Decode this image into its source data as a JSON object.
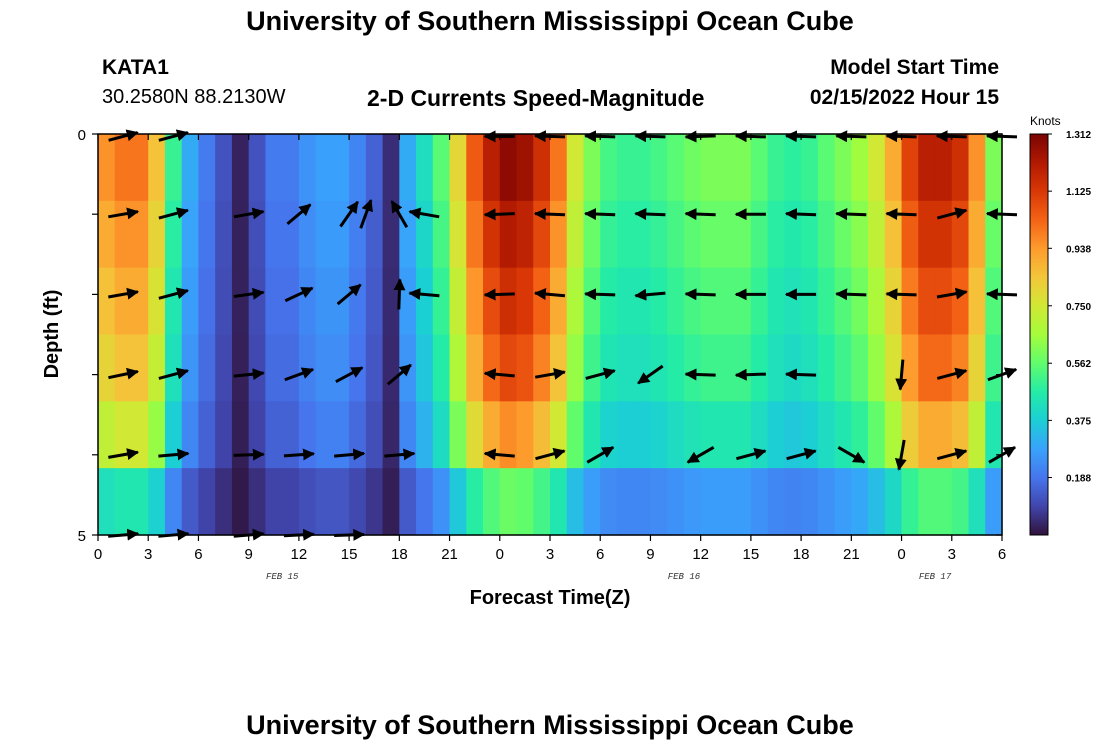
{
  "header": {
    "title": "University of Southern Mississippi Ocean Cube",
    "station": "KATA1",
    "coords": "30.2580N  88.2130W",
    "subtitle": "2-D Currents Speed-Magnitude",
    "model_start_label": "Model Start Time",
    "model_start_value": "02/15/2022 Hour 15"
  },
  "footer": {
    "title": "University of Southern Mississippi Ocean Cube"
  },
  "chart_data": {
    "type": "heatmap",
    "title": "2-D Currents Speed-Magnitude",
    "xlabel": "Forecast Time(Z)",
    "ylabel": "Depth (ft)",
    "x_tick_labels": [
      "0",
      "3",
      "6",
      "9",
      "12",
      "15",
      "18",
      "21",
      "0",
      "3",
      "6",
      "9",
      "12",
      "15",
      "18",
      "21",
      "0",
      "3",
      "6"
    ],
    "y_tick_labels": [
      "0",
      "5"
    ],
    "date_labels": [
      {
        "text": "FEB 15",
        "at_hour": 11
      },
      {
        "text": "FEB 16",
        "at_hour": 35
      },
      {
        "text": "FEB 17",
        "at_hour": 50
      }
    ],
    "xlim": [
      0,
      54
    ],
    "ylim": [
      0,
      5
    ],
    "colorbar": {
      "title": "Knots",
      "ticks": [
        "1.312",
        "1.125",
        "0.938",
        "0.750",
        "0.562",
        "0.375",
        "0.188"
      ],
      "tick_values": [
        1.312,
        1.125,
        0.938,
        0.75,
        0.562,
        0.375,
        0.188
      ],
      "range": [
        0,
        1.312
      ]
    },
    "speed_profile": {
      "hours": [
        0,
        1,
        2,
        3,
        4,
        5,
        6,
        7,
        8,
        9,
        10,
        11,
        12,
        13,
        14,
        15,
        16,
        17,
        18,
        19,
        20,
        21,
        22,
        23,
        24,
        25,
        26,
        27,
        28,
        29,
        30,
        31,
        32,
        33,
        34,
        35,
        36,
        37,
        38,
        39,
        40,
        41,
        42,
        43,
        44,
        45,
        46,
        47,
        48,
        49,
        50,
        51,
        52,
        53,
        54
      ],
      "row_top": [
        0.95,
        1.0,
        1.0,
        0.85,
        0.5,
        0.3,
        0.2,
        0.12,
        0.03,
        0.12,
        0.2,
        0.2,
        0.25,
        0.28,
        0.28,
        0.22,
        0.15,
        0.05,
        0.3,
        0.42,
        0.55,
        0.8,
        1.05,
        1.2,
        1.28,
        1.25,
        1.15,
        1.0,
        0.75,
        0.6,
        0.52,
        0.5,
        0.5,
        0.52,
        0.55,
        0.58,
        0.6,
        0.6,
        0.6,
        0.55,
        0.5,
        0.48,
        0.5,
        0.55,
        0.6,
        0.65,
        0.75,
        0.9,
        1.1,
        1.2,
        1.2,
        1.15,
        0.95,
        0.6,
        0.3
      ],
      "row_factors": [
        1.0,
        0.95,
        0.9,
        0.85,
        0.75,
        0.45
      ]
    },
    "vectors": {
      "rows_depth": [
        0.03,
        1.0,
        2.0,
        3.0,
        4.0,
        5.0
      ],
      "columns": [
        {
          "hour": 1.5,
          "dirs": [
            15,
            10,
            10,
            12,
            10,
            5
          ]
        },
        {
          "hour": 4.5,
          "dirs": [
            15,
            15,
            15,
            15,
            5,
            5
          ]
        },
        {
          "hour": 9.0,
          "dirs": [
            null,
            10,
            8,
            6,
            2,
            5
          ]
        },
        {
          "hour": 12.0,
          "dirs": [
            null,
            40,
            25,
            20,
            4,
            3
          ]
        },
        {
          "hour": 15.0,
          "dirs": [
            null,
            55,
            40,
            28,
            5,
            2
          ]
        },
        {
          "hour": 16.0,
          "dirs": [
            null,
            70,
            null,
            null,
            null,
            null
          ]
        },
        {
          "hour": 18.0,
          "dirs": [
            null,
            120,
            88,
            40,
            5,
            null
          ]
        },
        {
          "hour": 19.5,
          "dirs": [
            null,
            170,
            175,
            null,
            null,
            null
          ]
        },
        {
          "hour": 21.0,
          "dirs": [
            null,
            null,
            null,
            null,
            null,
            null
          ]
        },
        {
          "hour": 24.0,
          "dirs": [
            180,
            -178,
            -178,
            175,
            175,
            null
          ]
        },
        {
          "hour": 27.0,
          "dirs": [
            178,
            178,
            175,
            10,
            15,
            null
          ]
        },
        {
          "hour": 30.0,
          "dirs": [
            178,
            178,
            178,
            15,
            30,
            null
          ]
        },
        {
          "hour": 33.0,
          "dirs": [
            178,
            178,
            -175,
            -145,
            null,
            null
          ]
        },
        {
          "hour": 36.0,
          "dirs": [
            -178,
            178,
            178,
            178,
            -150,
            null
          ]
        },
        {
          "hour": 39.0,
          "dirs": [
            178,
            180,
            180,
            -178,
            15,
            null
          ]
        },
        {
          "hour": 42.0,
          "dirs": [
            178,
            178,
            180,
            178,
            15,
            null
          ]
        },
        {
          "hour": 45.0,
          "dirs": [
            178,
            178,
            178,
            null,
            -30,
            null
          ]
        },
        {
          "hour": 48.0,
          "dirs": [
            178,
            178,
            178,
            -95,
            -100,
            null
          ]
        },
        {
          "hour": 51.0,
          "dirs": [
            178,
            15,
            10,
            15,
            15,
            null
          ]
        },
        {
          "hour": 54.0,
          "dirs": [
            178,
            178,
            178,
            20,
            30,
            null
          ]
        }
      ]
    },
    "grid": false
  },
  "colors": {
    "scale": [
      "#30123b",
      "#4145ab",
      "#4675ed",
      "#39a2fc",
      "#1bcfd4",
      "#24eca6",
      "#61fc6c",
      "#a4fc3b",
      "#d1e834",
      "#f3c63a",
      "#fe9b2d",
      "#f36315",
      "#d93806",
      "#b11901",
      "#7a0403"
    ]
  }
}
